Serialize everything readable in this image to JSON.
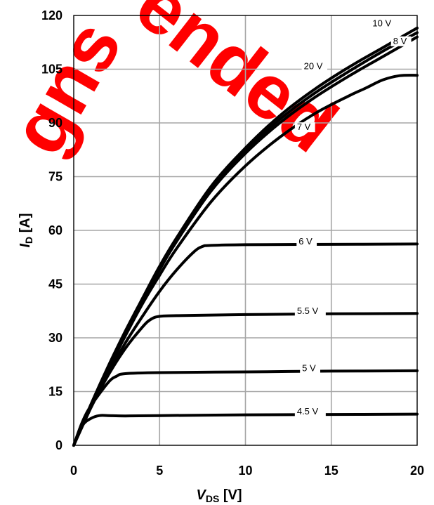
{
  "chart_data": {
    "type": "line",
    "xlabel_main": "V",
    "xlabel_sub": "DS",
    "xlabel_unit": " [V]",
    "ylabel_main": "I",
    "ylabel_sub": "D",
    "ylabel_unit": " [A]",
    "xlim": [
      0,
      20
    ],
    "ylim": [
      0,
      120
    ],
    "xticks": [
      0,
      5,
      10,
      15,
      20
    ],
    "yticks": [
      0,
      15,
      30,
      45,
      60,
      75,
      90,
      105,
      120
    ],
    "grid": true,
    "series": [
      {
        "name": "4.5 V",
        "x": [
          0,
          0.5,
          1,
          1.5,
          2,
          3,
          5,
          10,
          15,
          20
        ],
        "y": [
          0,
          5.5,
          7.5,
          8.3,
          8.3,
          8.2,
          8.3,
          8.5,
          8.6,
          8.7
        ]
      },
      {
        "name": "5 V",
        "x": [
          0,
          0.5,
          1,
          2,
          2.5,
          3,
          5,
          10,
          15,
          20
        ],
        "y": [
          0,
          6.5,
          11,
          17.5,
          19.3,
          20,
          20.3,
          20.5,
          20.7,
          20.8
        ]
      },
      {
        "name": "5.5 V",
        "x": [
          0,
          1,
          2,
          3,
          4,
          4.5,
          5,
          6,
          10,
          15,
          20
        ],
        "y": [
          0,
          10.5,
          19.5,
          27,
          33,
          35.2,
          36,
          36.2,
          36.5,
          36.7,
          36.8
        ]
      },
      {
        "name": "6 V",
        "x": [
          0,
          1,
          2,
          3,
          4,
          5,
          6,
          7,
          7.5,
          8,
          10,
          15,
          20
        ],
        "y": [
          0,
          10.5,
          20,
          28.5,
          36,
          43,
          49,
          54,
          55.5,
          55.8,
          56,
          56.1,
          56.2
        ]
      },
      {
        "name": "7 V",
        "x": [
          0,
          1,
          2,
          3,
          4,
          5,
          6,
          8,
          10,
          12,
          14,
          16,
          17,
          18,
          19,
          20
        ],
        "y": [
          0,
          11,
          21,
          30.5,
          39.5,
          47.5,
          55,
          68,
          78,
          86,
          92.5,
          97.5,
          99.7,
          102,
          103.2,
          103.3
        ]
      },
      {
        "name": "8 V",
        "x": [
          0,
          1,
          2,
          3,
          4,
          5,
          6,
          8,
          10,
          12,
          14,
          16,
          18,
          20
        ],
        "y": [
          0,
          11.2,
          21.5,
          31,
          40.3,
          49,
          57,
          71,
          81.5,
          90,
          97,
          103,
          108.5,
          114
        ]
      },
      {
        "name": "10 V",
        "x": [
          0,
          1,
          2,
          3,
          4,
          5,
          6,
          8,
          10,
          12,
          14,
          16,
          18,
          20
        ],
        "y": [
          0,
          11.4,
          22,
          31.8,
          41,
          50,
          58,
          72.3,
          83,
          92,
          99.3,
          105.5,
          111,
          116.5
        ]
      },
      {
        "name": "20 V",
        "x": [
          0,
          1,
          2,
          3,
          4,
          5,
          6,
          8,
          10,
          12,
          14,
          16,
          18,
          20
        ],
        "y": [
          0,
          11.3,
          21.8,
          31.4,
          40.6,
          49.5,
          57.5,
          71.7,
          82.3,
          91,
          98.2,
          104.3,
          110,
          115.2
        ]
      }
    ]
  },
  "watermark": {
    "lines": [
      "gns",
      "ended"
    ],
    "color": "#ff0000"
  }
}
